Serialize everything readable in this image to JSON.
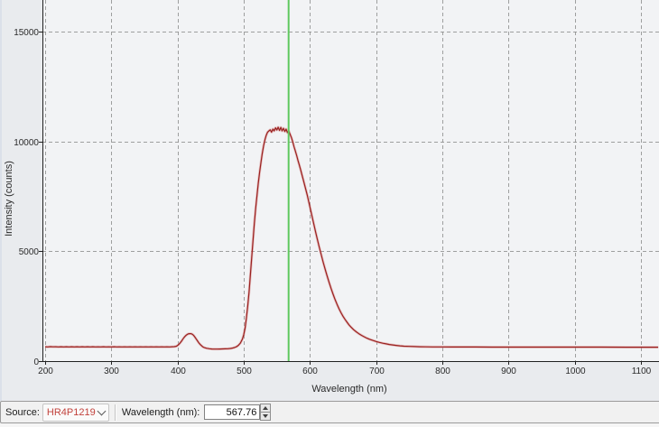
{
  "chart_data": {
    "type": "line",
    "title": "",
    "xlabel": "Wavelength (nm)",
    "ylabel": "Intensity (counts)",
    "xlim": [
      200,
      1127
    ],
    "ylim": [
      0,
      16440
    ],
    "x_ticks": [
      200,
      300,
      400,
      500,
      600,
      700,
      800,
      900,
      1000,
      1100
    ],
    "y_ticks": [
      0,
      5000,
      10000,
      15000
    ],
    "grid": "dashed",
    "legend": "none",
    "cursor_x": 567.76,
    "series": [
      {
        "name": "spectrum",
        "color": "#99201f",
        "points": [
          [
            200,
            655
          ],
          [
            204,
            645
          ],
          [
            208,
            658
          ],
          [
            212,
            648
          ],
          [
            216,
            655
          ],
          [
            220,
            645
          ],
          [
            224,
            652
          ],
          [
            228,
            644
          ],
          [
            232,
            654
          ],
          [
            236,
            646
          ],
          [
            240,
            653
          ],
          [
            244,
            645
          ],
          [
            248,
            655
          ],
          [
            252,
            646
          ],
          [
            256,
            652
          ],
          [
            260,
            645
          ],
          [
            264,
            653
          ],
          [
            268,
            646
          ],
          [
            272,
            652
          ],
          [
            276,
            645
          ],
          [
            280,
            651
          ],
          [
            284,
            644
          ],
          [
            288,
            652
          ],
          [
            292,
            646
          ],
          [
            296,
            651
          ],
          [
            300,
            645
          ],
          [
            304,
            652
          ],
          [
            308,
            645
          ],
          [
            312,
            651
          ],
          [
            316,
            644
          ],
          [
            320,
            650
          ],
          [
            324,
            645
          ],
          [
            328,
            650
          ],
          [
            332,
            644
          ],
          [
            336,
            650
          ],
          [
            340,
            646
          ],
          [
            344,
            651
          ],
          [
            348,
            645
          ],
          [
            352,
            650
          ],
          [
            356,
            644
          ],
          [
            360,
            650
          ],
          [
            364,
            645
          ],
          [
            368,
            650
          ],
          [
            372,
            645
          ],
          [
            376,
            649
          ],
          [
            380,
            644
          ],
          [
            384,
            649
          ],
          [
            388,
            645
          ],
          [
            392,
            652
          ],
          [
            395,
            658
          ],
          [
            398,
            675
          ],
          [
            400,
            710
          ],
          [
            402,
            760
          ],
          [
            404,
            830
          ],
          [
            406,
            910
          ],
          [
            408,
            1000
          ],
          [
            410,
            1080
          ],
          [
            412,
            1150
          ],
          [
            414,
            1200
          ],
          [
            416,
            1235
          ],
          [
            418,
            1248
          ],
          [
            420,
            1250
          ],
          [
            422,
            1228
          ],
          [
            424,
            1180
          ],
          [
            426,
            1105
          ],
          [
            428,
            1015
          ],
          [
            430,
            925
          ],
          [
            432,
            840
          ],
          [
            434,
            765
          ],
          [
            436,
            705
          ],
          [
            438,
            655
          ],
          [
            440,
            620
          ],
          [
            444,
            585
          ],
          [
            448,
            562
          ],
          [
            452,
            550
          ],
          [
            456,
            545
          ],
          [
            460,
            546
          ],
          [
            464,
            549
          ],
          [
            468,
            553
          ],
          [
            472,
            558
          ],
          [
            476,
            565
          ],
          [
            480,
            575
          ],
          [
            483,
            590
          ],
          [
            486,
            615
          ],
          [
            489,
            655
          ],
          [
            492,
            720
          ],
          [
            495,
            820
          ],
          [
            498,
            1000
          ],
          [
            500,
            1200
          ],
          [
            502,
            1500
          ],
          [
            504,
            1950
          ],
          [
            506,
            2500
          ],
          [
            508,
            3150
          ],
          [
            510,
            3900
          ],
          [
            512,
            4700
          ],
          [
            514,
            5500
          ],
          [
            516,
            6250
          ],
          [
            518,
            6950
          ],
          [
            520,
            7550
          ],
          [
            522,
            8100
          ],
          [
            524,
            8600
          ],
          [
            526,
            9050
          ],
          [
            528,
            9450
          ],
          [
            530,
            9800
          ],
          [
            532,
            10080
          ],
          [
            534,
            10280
          ],
          [
            536,
            10420
          ],
          [
            538,
            10480
          ],
          [
            540,
            10530
          ],
          [
            542,
            10420
          ],
          [
            544,
            10560
          ],
          [
            546,
            10480
          ],
          [
            548,
            10620
          ],
          [
            550,
            10520
          ],
          [
            552,
            10650
          ],
          [
            554,
            10500
          ],
          [
            556,
            10640
          ],
          [
            558,
            10480
          ],
          [
            560,
            10600
          ],
          [
            562,
            10450
          ],
          [
            564,
            10560
          ],
          [
            566,
            10400
          ],
          [
            568,
            10480
          ],
          [
            570,
            10330
          ],
          [
            572,
            10180
          ],
          [
            574,
            9980
          ],
          [
            576,
            9760
          ],
          [
            578,
            9560
          ],
          [
            580,
            9350
          ],
          [
            582,
            9130
          ],
          [
            584,
            8920
          ],
          [
            586,
            8700
          ],
          [
            588,
            8480
          ],
          [
            590,
            8250
          ],
          [
            593,
            7900
          ],
          [
            596,
            7550
          ],
          [
            599,
            7150
          ],
          [
            602,
            6750
          ],
          [
            605,
            6350
          ],
          [
            608,
            5950
          ],
          [
            611,
            5570
          ],
          [
            614,
            5200
          ],
          [
            617,
            4850
          ],
          [
            620,
            4500
          ],
          [
            623,
            4180
          ],
          [
            626,
            3870
          ],
          [
            629,
            3580
          ],
          [
            632,
            3300
          ],
          [
            635,
            3040
          ],
          [
            638,
            2800
          ],
          [
            641,
            2580
          ],
          [
            644,
            2380
          ],
          [
            647,
            2200
          ],
          [
            650,
            2040
          ],
          [
            653,
            1900
          ],
          [
            656,
            1770
          ],
          [
            659,
            1650
          ],
          [
            662,
            1550
          ],
          [
            666,
            1430
          ],
          [
            670,
            1330
          ],
          [
            674,
            1245
          ],
          [
            678,
            1170
          ],
          [
            682,
            1105
          ],
          [
            686,
            1045
          ],
          [
            690,
            995
          ],
          [
            695,
            940
          ],
          [
            700,
            890
          ],
          [
            705,
            850
          ],
          [
            710,
            815
          ],
          [
            715,
            785
          ],
          [
            720,
            758
          ],
          [
            725,
            735
          ],
          [
            730,
            715
          ],
          [
            736,
            695
          ],
          [
            742,
            680
          ],
          [
            750,
            668
          ],
          [
            758,
            660
          ],
          [
            766,
            655
          ],
          [
            775,
            650
          ],
          [
            785,
            647
          ],
          [
            800,
            644
          ],
          [
            815,
            642
          ],
          [
            830,
            641
          ],
          [
            850,
            640
          ],
          [
            875,
            639
          ],
          [
            900,
            638
          ],
          [
            930,
            637
          ],
          [
            960,
            636
          ],
          [
            1000,
            635
          ],
          [
            1040,
            635
          ],
          [
            1080,
            634
          ],
          [
            1100,
            634
          ],
          [
            1126,
            634
          ]
        ]
      }
    ]
  },
  "chart": {
    "cursor_color": "#5fc85f",
    "line_halo_color": "#d98d8d",
    "grid_color": "#8f8f8f",
    "axis_color": "#212121",
    "plot_bg": "#f2f3f5",
    "margin_bg": "#e9ebee"
  },
  "statusbar": {
    "source_label": "Source:",
    "source_value": "HR4P1219",
    "source_value_color": "#c2423c",
    "chevron_icon": "chevron-down",
    "wavelength_label": "Wavelength (nm):",
    "wavelength_value": "567.76"
  }
}
